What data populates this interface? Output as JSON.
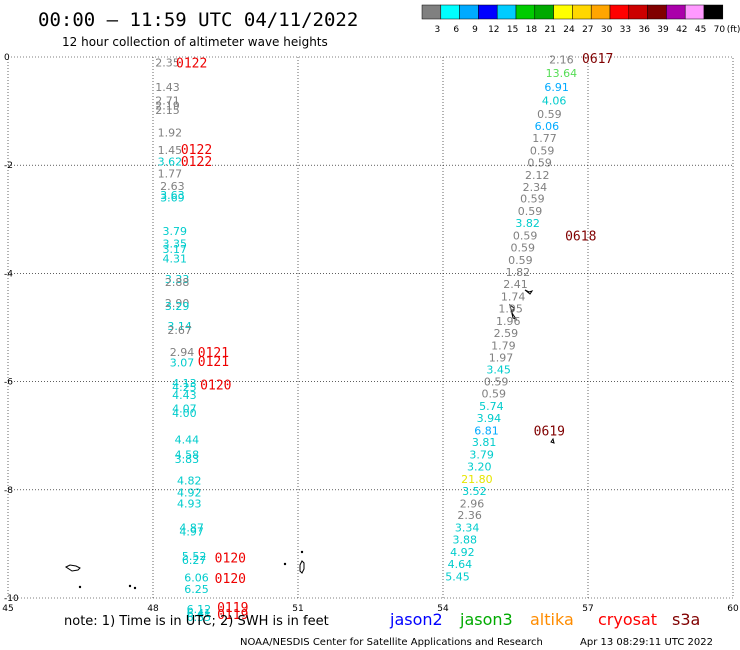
{
  "header": {
    "title": "00:00 – 11:59 UTC 04/11/2022",
    "subtitle": "12 hour collection of altimeter wave heights"
  },
  "colorbar": {
    "labels": [
      "3",
      "6",
      "9",
      "12",
      "15",
      "18",
      "21",
      "24",
      "27",
      "30",
      "33",
      "36",
      "39",
      "42",
      "45",
      "70"
    ],
    "unit": "(ft)",
    "colors": [
      "#808080",
      "#00ffff",
      "#00aaff",
      "#0000ff",
      "#00ccff",
      "#00cc00",
      "#00aa00",
      "#ffff00",
      "#ffd700",
      "#ffa500",
      "#ff0000",
      "#cc0000",
      "#800000",
      "#aa00aa",
      "#ff99ff",
      "#000000"
    ]
  },
  "footer": {
    "note": "note: 1) Time is in UTC; 2) SWH is in feet",
    "credit": "NOAA/NESDIS Center for Satellite Applications and Research",
    "timestamp": "Apr 13 08:29:11 UTC 2022"
  },
  "legend": [
    {
      "name": "jason2",
      "color": "#0000ff"
    },
    {
      "name": "jason3",
      "color": "#00aa00"
    },
    {
      "name": "altika",
      "color": "#ff8c00"
    },
    {
      "name": "cryosat",
      "color": "#ff0000"
    },
    {
      "name": "s3a",
      "color": "#800000"
    }
  ],
  "chart_data": {
    "type": "scatter",
    "xlim": [
      45,
      60
    ],
    "ylim": [
      -10,
      0
    ],
    "x_ticks": [
      "45",
      "48",
      "51",
      "54",
      "57",
      "60"
    ],
    "y_ticks": [
      "0",
      "-2",
      "-4",
      "-6",
      "-8",
      "-10"
    ],
    "grid": true,
    "points": [
      {
        "x": 48.3,
        "y": -0.1,
        "v": "2.35",
        "color": "#808080"
      },
      {
        "x": 48.3,
        "y": -0.55,
        "v": "1.43",
        "color": "#808080"
      },
      {
        "x": 48.3,
        "y": -0.8,
        "v": "2.71",
        "color": "#808080"
      },
      {
        "x": 48.3,
        "y": -0.9,
        "v": "2.19",
        "color": "#808080"
      },
      {
        "x": 48.3,
        "y": -0.98,
        "v": "2.15",
        "color": "#808080"
      },
      {
        "x": 48.35,
        "y": -1.4,
        "v": "1.92",
        "color": "#808080"
      },
      {
        "x": 48.35,
        "y": -1.72,
        "v": "1.45",
        "color": "#808080"
      },
      {
        "x": 48.35,
        "y": -1.93,
        "v": "3.62",
        "color": "#00cccc"
      },
      {
        "x": 48.35,
        "y": -2.15,
        "v": "1.77",
        "color": "#808080"
      },
      {
        "x": 48.4,
        "y": -2.38,
        "v": "2.63",
        "color": "#808080"
      },
      {
        "x": 48.4,
        "y": -2.55,
        "v": "3.63",
        "color": "#00cccc"
      },
      {
        "x": 48.4,
        "y": -2.6,
        "v": "3.69",
        "color": "#00cccc"
      },
      {
        "x": 48.45,
        "y": -3.22,
        "v": "3.79",
        "color": "#00cccc"
      },
      {
        "x": 48.45,
        "y": -3.45,
        "v": "3.35",
        "color": "#00cccc"
      },
      {
        "x": 48.45,
        "y": -3.55,
        "v": "3.17",
        "color": "#00cccc"
      },
      {
        "x": 48.45,
        "y": -3.72,
        "v": "4.31",
        "color": "#00cccc"
      },
      {
        "x": 48.5,
        "y": -4.1,
        "v": "3.33",
        "color": "#00cccc"
      },
      {
        "x": 48.5,
        "y": -4.16,
        "v": "2.88",
        "color": "#808080"
      },
      {
        "x": 48.5,
        "y": -4.55,
        "v": "2.90",
        "color": "#808080"
      },
      {
        "x": 48.5,
        "y": -4.6,
        "v": "3.29",
        "color": "#00cccc"
      },
      {
        "x": 48.55,
        "y": -4.97,
        "v": "3.14",
        "color": "#00cccc"
      },
      {
        "x": 48.55,
        "y": -5.05,
        "v": "2.67",
        "color": "#808080"
      },
      {
        "x": 48.6,
        "y": -5.45,
        "v": "2.94",
        "color": "#808080"
      },
      {
        "x": 48.6,
        "y": -5.65,
        "v": "3.07",
        "color": "#00cccc"
      },
      {
        "x": 48.65,
        "y": -6.03,
        "v": "4.13",
        "color": "#00cccc"
      },
      {
        "x": 48.65,
        "y": -6.1,
        "v": "4.25",
        "color": "#00cccc"
      },
      {
        "x": 48.65,
        "y": -6.25,
        "v": "4.43",
        "color": "#00cccc"
      },
      {
        "x": 48.65,
        "y": -6.5,
        "v": "4.07",
        "color": "#00cccc"
      },
      {
        "x": 48.65,
        "y": -6.58,
        "v": "4.00",
        "color": "#00cccc"
      },
      {
        "x": 48.7,
        "y": -7.07,
        "v": "4.44",
        "color": "#00cccc"
      },
      {
        "x": 48.7,
        "y": -7.35,
        "v": "4.58",
        "color": "#00cccc"
      },
      {
        "x": 48.7,
        "y": -7.43,
        "v": "3.83",
        "color": "#00cccc"
      },
      {
        "x": 48.75,
        "y": -7.83,
        "v": "4.82",
        "color": "#00cccc"
      },
      {
        "x": 48.75,
        "y": -8.05,
        "v": "4.92",
        "color": "#00cccc"
      },
      {
        "x": 48.75,
        "y": -8.25,
        "v": "4.93",
        "color": "#00cccc"
      },
      {
        "x": 48.8,
        "y": -8.7,
        "v": "4.87",
        "color": "#00cccc"
      },
      {
        "x": 48.8,
        "y": -8.77,
        "v": "4.97",
        "color": "#00cccc"
      },
      {
        "x": 48.85,
        "y": -9.22,
        "v": "5.52",
        "color": "#00cccc"
      },
      {
        "x": 48.85,
        "y": -9.3,
        "v": "6.27",
        "color": "#00cccc"
      },
      {
        "x": 48.9,
        "y": -9.62,
        "v": "6.06",
        "color": "#00cccc"
      },
      {
        "x": 48.9,
        "y": -9.83,
        "v": "6.25",
        "color": "#00cccc"
      },
      {
        "x": 48.95,
        "y": -10.2,
        "v": "6.12",
        "color": "#00cccc"
      },
      {
        "x": 48.95,
        "y": -10.28,
        "v": "6.41",
        "color": "#00cccc"
      },
      {
        "x": 48.95,
        "y": -10.35,
        "v": "6.35",
        "color": "#00cccc"
      },
      {
        "x": 56.45,
        "y": -0.05,
        "v": "2.16",
        "color": "#808080"
      },
      {
        "x": 56.45,
        "y": -0.3,
        "v": "13.64",
        "color": "#55dd55"
      },
      {
        "x": 56.35,
        "y": -0.55,
        "v": "6.91",
        "color": "#00aaff"
      },
      {
        "x": 56.3,
        "y": -0.8,
        "v": "4.06",
        "color": "#00cccc"
      },
      {
        "x": 56.2,
        "y": -1.05,
        "v": "0.59",
        "color": "#808080"
      },
      {
        "x": 56.15,
        "y": -1.28,
        "v": "6.06",
        "color": "#00aaff"
      },
      {
        "x": 56.1,
        "y": -1.5,
        "v": "1.77",
        "color": "#808080"
      },
      {
        "x": 56.05,
        "y": -1.73,
        "v": "0.59",
        "color": "#808080"
      },
      {
        "x": 56.0,
        "y": -1.95,
        "v": "0.59",
        "color": "#808080"
      },
      {
        "x": 55.95,
        "y": -2.18,
        "v": "2.12",
        "color": "#808080"
      },
      {
        "x": 55.9,
        "y": -2.4,
        "v": "2.34",
        "color": "#808080"
      },
      {
        "x": 55.85,
        "y": -2.62,
        "v": "0.59",
        "color": "#808080"
      },
      {
        "x": 55.8,
        "y": -2.85,
        "v": "0.59",
        "color": "#808080"
      },
      {
        "x": 55.75,
        "y": -3.07,
        "v": "3.82",
        "color": "#00cccc"
      },
      {
        "x": 55.7,
        "y": -3.3,
        "v": "0.59",
        "color": "#808080"
      },
      {
        "x": 55.65,
        "y": -3.52,
        "v": "0.59",
        "color": "#808080"
      },
      {
        "x": 55.6,
        "y": -3.75,
        "v": "0.59",
        "color": "#808080"
      },
      {
        "x": 55.55,
        "y": -3.97,
        "v": "1.82",
        "color": "#808080"
      },
      {
        "x": 55.5,
        "y": -4.2,
        "v": "2.41",
        "color": "#808080"
      },
      {
        "x": 55.45,
        "y": -4.43,
        "v": "1.74",
        "color": "#808080"
      },
      {
        "x": 55.4,
        "y": -4.65,
        "v": "1.95",
        "color": "#808080"
      },
      {
        "x": 55.35,
        "y": -4.88,
        "v": "1.96",
        "color": "#808080"
      },
      {
        "x": 55.3,
        "y": -5.1,
        "v": "2.59",
        "color": "#808080"
      },
      {
        "x": 55.25,
        "y": -5.33,
        "v": "1.79",
        "color": "#808080"
      },
      {
        "x": 55.2,
        "y": -5.55,
        "v": "1.97",
        "color": "#808080"
      },
      {
        "x": 55.15,
        "y": -5.78,
        "v": "3.45",
        "color": "#00cccc"
      },
      {
        "x": 55.1,
        "y": -6.0,
        "v": "0.59",
        "color": "#808080"
      },
      {
        "x": 55.05,
        "y": -6.22,
        "v": "0.59",
        "color": "#808080"
      },
      {
        "x": 55.0,
        "y": -6.45,
        "v": "5.74",
        "color": "#00cccc"
      },
      {
        "x": 54.95,
        "y": -6.67,
        "v": "3.94",
        "color": "#00cccc"
      },
      {
        "x": 54.9,
        "y": -6.9,
        "v": "6.81",
        "color": "#00aaff"
      },
      {
        "x": 54.85,
        "y": -7.12,
        "v": "3.81",
        "color": "#00cccc"
      },
      {
        "x": 54.8,
        "y": -7.35,
        "v": "3.79",
        "color": "#00cccc"
      },
      {
        "x": 54.75,
        "y": -7.57,
        "v": "3.20",
        "color": "#00cccc"
      },
      {
        "x": 54.7,
        "y": -7.8,
        "v": "21.80",
        "color": "#e6e600"
      },
      {
        "x": 54.65,
        "y": -8.02,
        "v": "3.52",
        "color": "#00cccc"
      },
      {
        "x": 54.6,
        "y": -8.25,
        "v": "2.96",
        "color": "#808080"
      },
      {
        "x": 54.55,
        "y": -8.47,
        "v": "2.36",
        "color": "#808080"
      },
      {
        "x": 54.5,
        "y": -8.7,
        "v": "3.34",
        "color": "#00cccc"
      },
      {
        "x": 54.45,
        "y": -8.92,
        "v": "3.88",
        "color": "#00cccc"
      },
      {
        "x": 54.4,
        "y": -9.15,
        "v": "4.92",
        "color": "#00cccc"
      },
      {
        "x": 54.35,
        "y": -9.37,
        "v": "4.64",
        "color": "#00cccc"
      },
      {
        "x": 54.3,
        "y": -9.6,
        "v": "5.45",
        "color": "#00cccc"
      }
    ],
    "pass_labels": [
      {
        "x": 48.8,
        "y": -0.1,
        "text": "0122",
        "color": "#ee0000"
      },
      {
        "x": 48.9,
        "y": -1.7,
        "text": "0122",
        "color": "#ee0000"
      },
      {
        "x": 48.9,
        "y": -1.92,
        "text": "0122",
        "color": "#ee0000"
      },
      {
        "x": 49.25,
        "y": -5.45,
        "text": "0121",
        "color": "#ee0000"
      },
      {
        "x": 49.25,
        "y": -5.62,
        "text": "0121",
        "color": "#ee0000"
      },
      {
        "x": 49.3,
        "y": -6.05,
        "text": "0120",
        "color": "#ee0000"
      },
      {
        "x": 49.6,
        "y": -9.25,
        "text": "0120",
        "color": "#ee0000"
      },
      {
        "x": 49.6,
        "y": -9.63,
        "text": "0120",
        "color": "#ee0000"
      },
      {
        "x": 49.65,
        "y": -10.17,
        "text": "0119",
        "color": "#ee0000"
      },
      {
        "x": 49.65,
        "y": -10.3,
        "text": "0119",
        "color": "#ee0000"
      },
      {
        "x": 57.2,
        "y": -0.02,
        "text": "0617",
        "color": "#800000"
      },
      {
        "x": 56.85,
        "y": -3.3,
        "text": "0618",
        "color": "#800000"
      },
      {
        "x": 56.2,
        "y": -6.9,
        "text": "0619",
        "color": "#800000"
      }
    ]
  }
}
